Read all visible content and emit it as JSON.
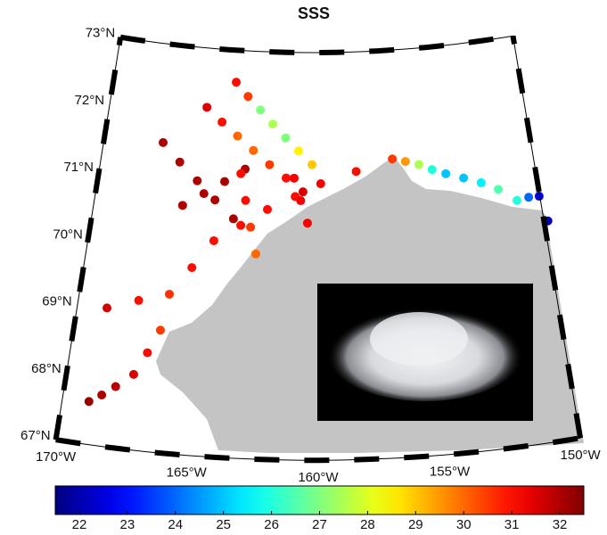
{
  "chart_data": {
    "type": "map",
    "title": "SSS",
    "lonlim": [
      -170,
      -150
    ],
    "latlim": [
      67,
      73
    ],
    "lat_labels": [
      {
        "value": 73,
        "label": "73°N"
      },
      {
        "value": 72,
        "label": "72°N"
      },
      {
        "value": 71,
        "label": "71°N"
      },
      {
        "value": 70,
        "label": "70°N"
      },
      {
        "value": 69,
        "label": "69°N"
      },
      {
        "value": 68,
        "label": "68°N"
      },
      {
        "value": 67,
        "label": "67°N"
      }
    ],
    "lon_labels": [
      {
        "value": -170,
        "label": "170°W"
      },
      {
        "value": -165,
        "label": "165°W"
      },
      {
        "value": -160,
        "label": "160°W"
      },
      {
        "value": -155,
        "label": "155°W"
      },
      {
        "value": -150,
        "label": "150°W"
      }
    ],
    "points": {
      "lon": [
        -168.96,
        -168.5,
        -168.0,
        -167.35,
        -166.9,
        -166.47,
        -168.77,
        -167.5,
        -166.25,
        -165.4,
        -164.54,
        -163.4,
        -162.24,
        -161.0,
        -159.84,
        -158.2,
        -156.5,
        -155.9,
        -155.29,
        -154.7,
        -154.09,
        -153.3,
        -152.53,
        -151.8,
        -151.04,
        -150.5,
        -150.03,
        -149.83,
        -163.99,
        -163.37,
        -162.74,
        -162.12,
        -161.49,
        -160.87,
        -160.24,
        -165.33,
        -164.55,
        -163.77,
        -162.99,
        -162.21,
        -161.43,
        -160.65,
        -167.24,
        -166.37,
        -165.49,
        -164.62,
        -163.74,
        -166.05,
        -165.14,
        -164.24,
        -163.33,
        -163.52,
        -163.24,
        -162.96,
        -162.68,
        -161.06,
        -160.75,
        -160.44
      ],
      "lat": [
        67.63,
        67.75,
        67.9,
        68.11,
        68.45,
        68.8,
        69.03,
        69.2,
        69.34,
        69.76,
        70.18,
        70.43,
        70.68,
        70.88,
        71.07,
        71.24,
        71.4,
        71.35,
        71.29,
        71.2,
        71.12,
        71.03,
        70.93,
        70.8,
        70.6,
        70.62,
        70.61,
        70.23,
        72.53,
        72.33,
        72.14,
        71.94,
        71.74,
        71.55,
        71.35,
        72.13,
        71.93,
        71.74,
        71.54,
        71.34,
        71.15,
        70.95,
        71.55,
        71.29,
        71.04,
        70.78,
        70.52,
        70.66,
        70.86,
        71.06,
        71.26,
        71.19,
        70.8,
        70.41,
        70.02,
        71.15,
        70.82,
        70.49
      ],
      "sss": [
        32.2,
        32,
        31.8,
        31.5,
        31,
        30.5,
        31.6,
        31,
        30.6,
        31,
        31,
        31,
        31,
        31,
        31.2,
        31,
        30.5,
        29.5,
        27.5,
        26,
        25,
        25,
        25.5,
        26.5,
        26,
        24,
        22.5,
        22,
        31,
        30.5,
        27,
        27.5,
        27,
        28.5,
        29,
        31.5,
        31,
        30,
        30,
        30.5,
        31,
        31.5,
        32,
        32,
        32,
        32,
        32,
        32,
        32,
        32,
        32,
        31,
        31,
        30.5,
        30,
        31.2,
        31.2,
        31.2
      ]
    },
    "colorbar": {
      "lim": [
        21.5,
        32.5
      ],
      "ticks": [
        22,
        23,
        24,
        25,
        26,
        27,
        28,
        29,
        30,
        31,
        32
      ]
    }
  }
}
